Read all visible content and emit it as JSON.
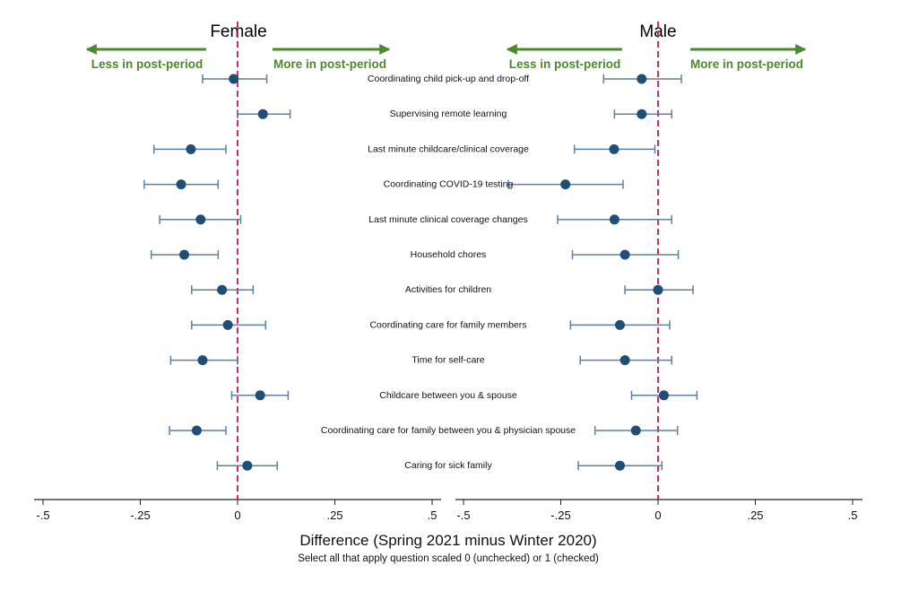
{
  "chart_data": {
    "type": "scatter",
    "subtype": "coefficient-plot-with-error-bars",
    "categories": [
      "Coordinating child pick-up and drop-off",
      "Supervising remote learning",
      "Last minute childcare/clinical coverage",
      "Coordinating COVID-19 testing",
      "Last minute clinical coverage changes",
      "Household chores",
      "Activities for children",
      "Coordinating care for family members",
      "Time for self-care",
      "Childcare between you & spouse",
      "Coordinating care for family between you & physician spouse",
      "Caring for sick family"
    ],
    "panels": [
      {
        "title": "Female",
        "arrow_left": "Less in post-period",
        "arrow_right": "More in post-period",
        "estimates": [
          -0.01,
          0.065,
          -0.12,
          -0.145,
          -0.095,
          -0.137,
          -0.04,
          -0.025,
          -0.09,
          0.058,
          -0.105,
          0.025
        ],
        "ci_low": [
          -0.09,
          0.0,
          -0.215,
          -0.24,
          -0.2,
          -0.222,
          -0.118,
          -0.118,
          -0.172,
          -0.015,
          -0.175,
          -0.052
        ],
        "ci_high": [
          0.075,
          0.135,
          -0.03,
          -0.05,
          0.008,
          -0.05,
          0.04,
          0.072,
          0.0,
          0.13,
          -0.03,
          0.102
        ],
        "xlim": [
          -0.5,
          0.5
        ],
        "xticks": [
          -0.5,
          -0.25,
          0,
          0.25,
          0.5
        ],
        "xtick_labels": [
          "-.5",
          "-.25",
          "0",
          ".25",
          ".5"
        ],
        "reference_line": 0
      },
      {
        "title": "Male",
        "arrow_left": "Less in post-period",
        "arrow_right": "More in post-period",
        "estimates": [
          -0.042,
          -0.042,
          -0.113,
          -0.238,
          -0.112,
          -0.085,
          0.0,
          -0.098,
          -0.085,
          0.015,
          -0.057,
          -0.098
        ],
        "ci_low": [
          -0.14,
          -0.112,
          -0.215,
          -0.385,
          -0.258,
          -0.22,
          -0.085,
          -0.225,
          -0.2,
          -0.068,
          -0.162,
          -0.205
        ],
        "ci_high": [
          0.06,
          0.035,
          -0.008,
          -0.09,
          0.035,
          0.052,
          0.09,
          0.03,
          0.035,
          0.1,
          0.05,
          0.01
        ],
        "xlim": [
          -0.5,
          0.5
        ],
        "xticks": [
          -0.5,
          -0.25,
          0,
          0.25,
          0.5
        ],
        "xtick_labels": [
          "-.5",
          "-.25",
          "0",
          ".25",
          ".5"
        ],
        "reference_line": 0
      }
    ],
    "xlabel": "Difference (Spring 2021 minus Winter 2020)",
    "xsubtitle": "Select all that apply question scaled 0 (unchecked) or 1 (checked)",
    "grid": false,
    "colors": {
      "point": "#1f4e79",
      "errorbar": "#5b7fa6",
      "reference_line": "#c2185b",
      "arrow": "#4a8a2a",
      "axis": "#222222"
    }
  }
}
